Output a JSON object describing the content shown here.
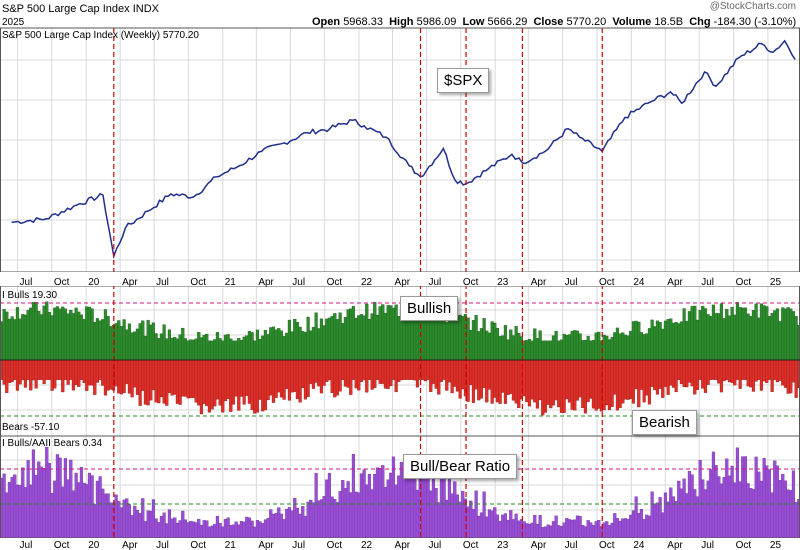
{
  "header": {
    "title": "S&P 500 Large Cap Index",
    "exchange": "INDX",
    "date_fragment": "2025",
    "open_label": "Open",
    "open": "5968.33",
    "high_label": "High",
    "high": "5986.09",
    "low_label": "Low",
    "low": "5666.29",
    "close_label": "Close",
    "close": "5770.20",
    "volume_label": "Volume",
    "volume": "18.5B",
    "chg_label": "Chg",
    "chg": "-184.30 (-3.10%)",
    "watermark": "@StockCharts.com"
  },
  "callouts": {
    "spx": "$SPX",
    "bullish": "Bullish",
    "bearish": "Bearish",
    "ratio": "Bull/Bear Ratio"
  },
  "colors": {
    "price_line": "#1f2f8c",
    "bulls": "#2e8b2e",
    "bears": "#e0302a",
    "ratio": "#9a4fd6",
    "vline": "#d40000",
    "grid": "#d9d9d9",
    "ref_magenta": "#d4148a",
    "ref_green": "#1f8f1f"
  },
  "chart_data": [
    {
      "type": "line",
      "title": "S&P 500 Large Cap Index (Weekly) 5770.20",
      "series": [
        {
          "name": "S&P 500 Large Cap Index (Weekly)",
          "x": [
            "2019-06",
            "2019-09",
            "2019-12",
            "2020-02",
            "2020-03",
            "2020-04",
            "2020-06",
            "2020-08",
            "2020-10",
            "2020-12",
            "2021-02",
            "2021-04",
            "2021-06",
            "2021-08",
            "2021-10",
            "2021-12",
            "2022-01",
            "2022-03",
            "2022-05",
            "2022-06",
            "2022-08",
            "2022-09",
            "2022-10",
            "2022-12",
            "2023-02",
            "2023-03",
            "2023-05",
            "2023-07",
            "2023-08",
            "2023-10",
            "2023-12",
            "2024-02",
            "2024-04",
            "2024-05",
            "2024-07",
            "2024-08",
            "2024-10",
            "2024-12",
            "2025-01",
            "2025-02",
            "2025-03"
          ],
          "values": [
            2900,
            2960,
            3230,
            3380,
            2300,
            2800,
            3100,
            3400,
            3350,
            3700,
            3900,
            4150,
            4300,
            4480,
            4550,
            4700,
            4600,
            4400,
            3900,
            3700,
            4200,
            3650,
            3580,
            3850,
            4100,
            3950,
            4150,
            4550,
            4400,
            4150,
            4750,
            5000,
            5200,
            5000,
            5550,
            5300,
            5800,
            6050,
            5900,
            6100,
            5770
          ]
        }
      ],
      "x_ticks": [
        "Jul",
        "Oct",
        "20",
        "Apr",
        "Jul",
        "Oct",
        "21",
        "Apr",
        "Jul",
        "Oct",
        "22",
        "Apr",
        "Jul",
        "Oct",
        "23",
        "Apr",
        "Jul",
        "Oct",
        "24",
        "Apr",
        "Jul",
        "Oct",
        "25"
      ],
      "events": [
        "2020-03",
        "2022-06",
        "2022-10",
        "2023-03",
        "2023-10"
      ]
    },
    {
      "type": "bar",
      "series": [
        {
          "name": "AAII Bulls",
          "last": 19.3
        },
        {
          "name": "AAII Bears",
          "last": -57.1
        }
      ],
      "label_top": "I Bulls 19.30",
      "label_bottom": "Bears -57.10"
    },
    {
      "type": "bar",
      "series": [
        {
          "name": "AAII Bulls/AAII Bears",
          "last": 0.34
        }
      ],
      "label": "I Bulls/AAII Bears 0.34"
    }
  ]
}
